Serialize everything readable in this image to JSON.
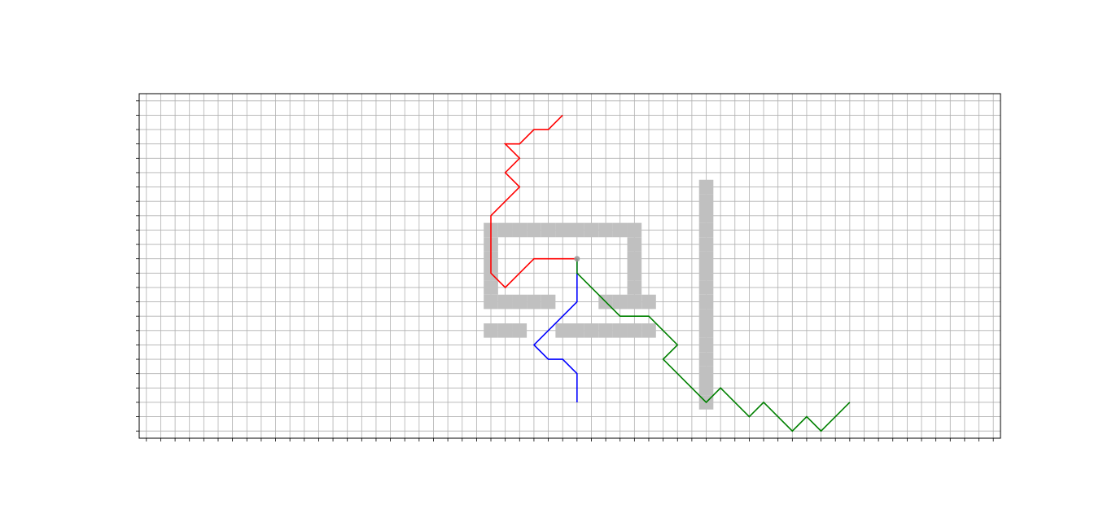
{
  "chart_data": {
    "type": "line",
    "title": "",
    "xlabel": "",
    "ylabel": "",
    "xlim": [
      -0.5,
      59.5
    ],
    "ylim": [
      23.5,
      -0.5
    ],
    "grid": true,
    "tick_labels_visible": false,
    "colors": {
      "grid": "#b0b0b0",
      "obstacle": "#c0c0c0",
      "axes": "#000000",
      "start": "#999999"
    },
    "obstacles": [
      [
        24,
        7
      ],
      [
        25,
        7
      ],
      [
        26,
        7
      ],
      [
        29,
        7
      ],
      [
        30,
        7
      ],
      [
        31,
        7
      ],
      [
        32,
        7
      ],
      [
        33,
        7
      ],
      [
        34,
        7
      ],
      [
        35,
        7
      ],
      [
        24,
        9
      ],
      [
        25,
        9
      ],
      [
        26,
        9
      ],
      [
        27,
        9
      ],
      [
        28,
        9
      ],
      [
        32,
        9
      ],
      [
        33,
        9
      ],
      [
        34,
        9
      ],
      [
        35,
        9
      ],
      [
        24,
        10
      ],
      [
        24,
        11
      ],
      [
        24,
        12
      ],
      [
        24,
        13
      ],
      [
        24,
        14
      ],
      [
        34,
        10
      ],
      [
        34,
        11
      ],
      [
        34,
        12
      ],
      [
        34,
        13
      ],
      [
        34,
        14
      ],
      [
        25,
        14
      ],
      [
        26,
        14
      ],
      [
        27,
        14
      ],
      [
        28,
        14
      ],
      [
        29,
        14
      ],
      [
        30,
        14
      ],
      [
        31,
        14
      ],
      [
        32,
        14
      ],
      [
        33,
        14
      ],
      [
        39,
        2
      ],
      [
        39,
        3
      ],
      [
        39,
        4
      ],
      [
        39,
        5
      ],
      [
        39,
        6
      ],
      [
        39,
        7
      ],
      [
        39,
        8
      ],
      [
        39,
        9
      ],
      [
        39,
        10
      ],
      [
        39,
        11
      ],
      [
        39,
        12
      ],
      [
        39,
        13
      ],
      [
        39,
        14
      ],
      [
        39,
        15
      ],
      [
        39,
        16
      ],
      [
        39,
        17
      ]
    ],
    "start_point": [
      30,
      12
    ],
    "series": [
      {
        "color": "#0000ff",
        "x": [
          30,
          30,
          30,
          30,
          29,
          28,
          27,
          28,
          29,
          30,
          30
        ],
        "y": [
          12,
          11,
          10,
          9,
          8,
          7,
          6,
          5,
          5,
          4,
          2
        ]
      },
      {
        "color": "#ff0000",
        "x": [
          30,
          29,
          28,
          27,
          26,
          25,
          24,
          24,
          24,
          24,
          24,
          25,
          26,
          25,
          26,
          25,
          26,
          27,
          28,
          29
        ],
        "y": [
          12,
          12,
          12,
          12,
          11,
          10,
          11,
          12,
          13,
          14,
          15,
          16,
          17,
          18,
          19,
          20,
          20,
          21,
          21,
          22
        ]
      },
      {
        "color": "#008000",
        "x": [
          30,
          30,
          31,
          32,
          33,
          34,
          35,
          36,
          37,
          36,
          37,
          38,
          39,
          40,
          41,
          42,
          43,
          44,
          45,
          46,
          47,
          48,
          49
        ],
        "y": [
          12,
          11,
          10,
          9,
          8,
          8,
          8,
          7,
          6,
          5,
          4,
          3,
          2,
          3,
          2,
          1,
          2,
          1,
          0,
          1,
          0,
          1,
          2
        ]
      }
    ]
  }
}
